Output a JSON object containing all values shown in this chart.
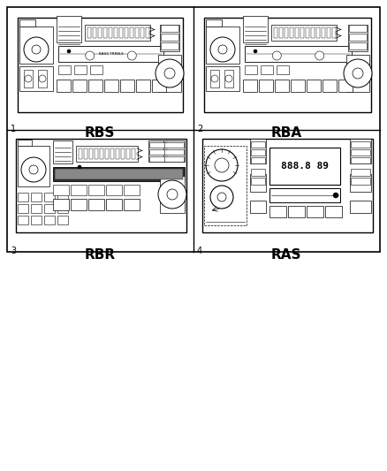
{
  "bg_color": "#ffffff",
  "ec": "#000000",
  "panels": [
    {
      "num": "1",
      "label": "RBS",
      "col": 0,
      "row": 0
    },
    {
      "num": "2",
      "label": "RBA",
      "col": 1,
      "row": 0
    },
    {
      "num": "3",
      "label": "RBR",
      "col": 0,
      "row": 1
    },
    {
      "num": "4",
      "label": "RAS",
      "col": 1,
      "row": 1
    }
  ],
  "label_fontsize": 11,
  "num_fontsize": 7,
  "fig_width": 4.38,
  "fig_height": 5.33,
  "dpi": 100
}
